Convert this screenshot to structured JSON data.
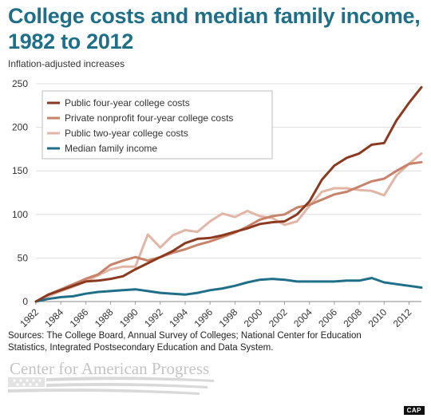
{
  "title": "College costs and median family income, 1982 to 2012",
  "subtitle": "Inflation-adjusted increases",
  "source": "Sources: The College Board, Annual Survey of Colleges; National Center for Education Statistics, Integrated Postsecondary Education and Data System.",
  "organization": "Center for American Progress",
  "tag": "CAP",
  "colors": {
    "public4": "#8b3a20",
    "private4": "#c8826a",
    "public2": "#e2b6a6",
    "income": "#1f6f88"
  },
  "chart_data": {
    "type": "line",
    "title": "College costs and median family income, 1982 to 2012",
    "ylabel": "Inflation-adjusted increases",
    "xlabel": "",
    "ylim": [
      0,
      250
    ],
    "yticks": [
      0,
      50,
      100,
      150,
      200,
      250
    ],
    "xticks": [
      "1982",
      "1984",
      "1986",
      "1988",
      "1990",
      "1992",
      "1994",
      "1996",
      "1998",
      "2000",
      "2002",
      "2004",
      "2006",
      "2008",
      "2010",
      "2012"
    ],
    "legend_position": "top-left",
    "grid": "horizontal",
    "x": [
      1982,
      1983,
      1984,
      1985,
      1986,
      1987,
      1988,
      1989,
      1990,
      1991,
      1992,
      1993,
      1994,
      1995,
      1996,
      1997,
      1998,
      1999,
      2000,
      2001,
      2002,
      2003,
      2004,
      2005,
      2006,
      2007,
      2008,
      2009,
      2010,
      2011,
      2012,
      2013
    ],
    "series": [
      {
        "name": "Public four-year college costs",
        "color": "#8b3a20",
        "values": [
          0,
          8,
          13,
          18,
          23,
          24,
          26,
          29,
          37,
          44,
          51,
          58,
          67,
          72,
          73,
          76,
          80,
          84,
          89,
          91,
          92,
          100,
          115,
          140,
          156,
          165,
          170,
          180,
          182,
          208,
          228,
          246
        ]
      },
      {
        "name": "Private nonprofit four-year college costs",
        "color": "#c8826a",
        "values": [
          0,
          8,
          14,
          20,
          26,
          31,
          42,
          47,
          51,
          47,
          51,
          56,
          60,
          65,
          69,
          74,
          79,
          86,
          94,
          98,
          100,
          108,
          111,
          117,
          123,
          126,
          132,
          138,
          141,
          150,
          158,
          160
        ]
      },
      {
        "name": "Public two-year college costs",
        "color": "#e2b6a6",
        "values": [
          0,
          6,
          12,
          17,
          23,
          30,
          37,
          40,
          40,
          77,
          62,
          76,
          82,
          80,
          92,
          101,
          97,
          104,
          98,
          96,
          88,
          92,
          110,
          126,
          130,
          130,
          128,
          127,
          122,
          145,
          158,
          170
        ]
      },
      {
        "name": "Median family income",
        "color": "#1f6f88",
        "values": [
          0,
          3,
          5,
          6,
          9,
          11,
          12,
          13,
          14,
          12,
          10,
          9,
          8,
          10,
          13,
          15,
          18,
          22,
          25,
          26,
          25,
          23,
          23,
          23,
          23,
          24,
          24,
          27,
          22,
          20,
          18,
          16
        ]
      }
    ]
  }
}
